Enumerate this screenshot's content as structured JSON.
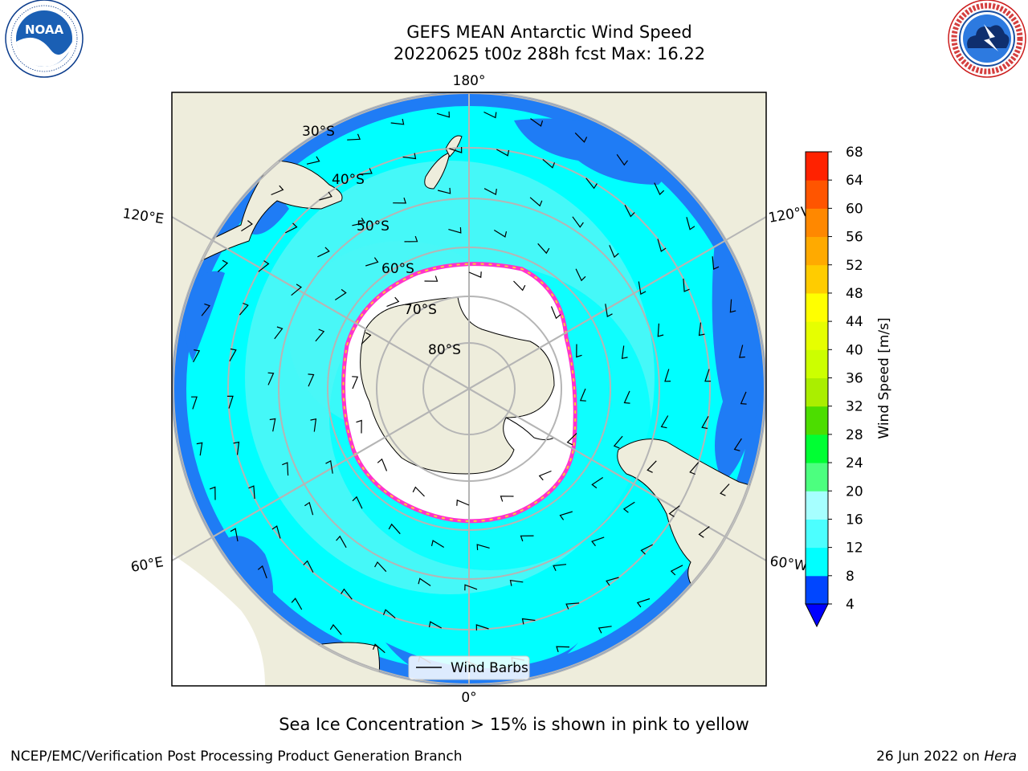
{
  "header": {
    "title_line1": "GEFS MEAN Antarctic Wind Speed",
    "title_line2": "20220625 t00z 288h fcst   Max: 16.22"
  },
  "logos": {
    "left_icon": "noaa-logo",
    "left_text": "NOAA",
    "left_ring_text": "NATIONAL OCEANIC AND ATMOSPHERIC ADMINISTRATION · U.S. DEPARTMENT OF COMMERCE",
    "right_icon": "national-weather-service-logo",
    "right_ring_text": "NATIONAL WEATHER SERVICE"
  },
  "map": {
    "projection": "south-polar-stereographic",
    "longitude_labels": [
      "180°",
      "120°E",
      "120°W",
      "60°E",
      "60°W",
      "0°"
    ],
    "latitude_labels": [
      "30°S",
      "40°S",
      "50°S",
      "60°S",
      "70°S",
      "80°S"
    ],
    "legend_label": "Wind Barbs",
    "colors": {
      "land": "#eeeddc",
      "ocean_8_12": "#00ffff",
      "ocean_12_16": "#4cf7f7",
      "ocean_4_8": "#1f7cf5",
      "sea_ice": "#ffffff",
      "ice_edge_pink": "#ff33cc",
      "ice_edge_yellow": "#ffcc33",
      "gridline": "#b5b5b5"
    }
  },
  "colorbar": {
    "label": "Wind Speed [m/s]",
    "ticks": [
      "4",
      "8",
      "12",
      "16",
      "20",
      "24",
      "28",
      "32",
      "36",
      "40",
      "44",
      "48",
      "52",
      "56",
      "60",
      "64",
      "68"
    ],
    "colors": [
      "#0046ff",
      "#00ffff",
      "#4cffff",
      "#a6ffff",
      "#4cff7f",
      "#00ff33",
      "#4cdd00",
      "#aaee00",
      "#ccff00",
      "#e6ff00",
      "#ffff00",
      "#ffcc00",
      "#ffaa00",
      "#ff8800",
      "#ff5500",
      "#ff2200"
    ],
    "extend_color": "#0000ff"
  },
  "footer": {
    "note": "Sea Ice Concentration > 15% is shown in pink to yellow",
    "credit_left": "NCEP/EMC/Verification Post Processing Product Generation Branch",
    "credit_date": "26 Jun 2022 on ",
    "credit_host": "Hera"
  }
}
